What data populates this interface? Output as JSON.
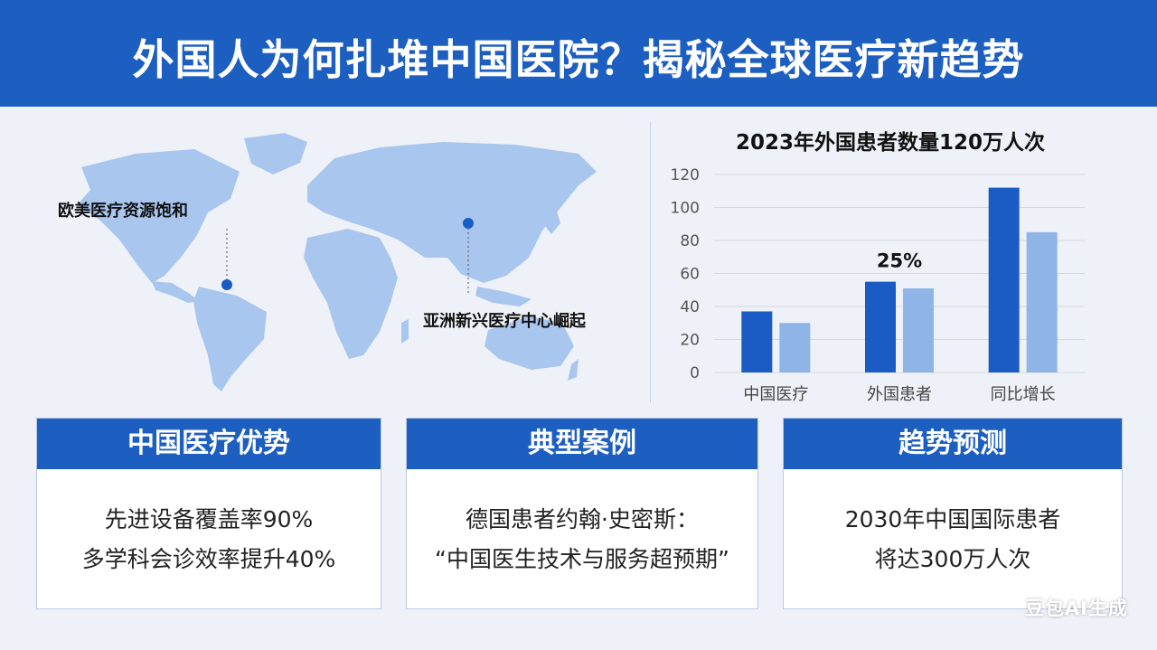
{
  "header": {
    "title": "外国人为何扎堆中国医院？揭秘全球医疗新趋势"
  },
  "map": {
    "label_west": "欧美医疗资源饱和",
    "label_asia": "亚洲新兴医疗中心崛起"
  },
  "chart_data": {
    "type": "bar",
    "title": "2023年外国患者数量120万人次",
    "categories": [
      "中国医疗",
      "外国患者",
      "同比增长"
    ],
    "series": [
      {
        "name": "series-1",
        "values": [
          37,
          55,
          112
        ]
      },
      {
        "name": "series-2",
        "values": [
          30,
          51,
          85
        ]
      }
    ],
    "yticks": [
      0,
      20,
      40,
      60,
      80,
      100,
      120
    ],
    "ylim": [
      0,
      120
    ],
    "annotation": "25%",
    "annotation_category": 1,
    "colors": [
      "#1a5cc4",
      "#8fb4e6"
    ]
  },
  "cards": [
    {
      "title": "中国医疗优势",
      "lines": [
        "先进设备覆盖率90%",
        "多学科会诊效率提升40%"
      ]
    },
    {
      "title": "典型案例",
      "lines": [
        "德国患者约翰·史密斯：",
        "“中国医生技术与服务超预期”"
      ]
    },
    {
      "title": "趋势预测",
      "lines": [
        "2030年中国国际患者",
        "将达300万人次"
      ]
    }
  ],
  "watermark": "豆包AI生成"
}
